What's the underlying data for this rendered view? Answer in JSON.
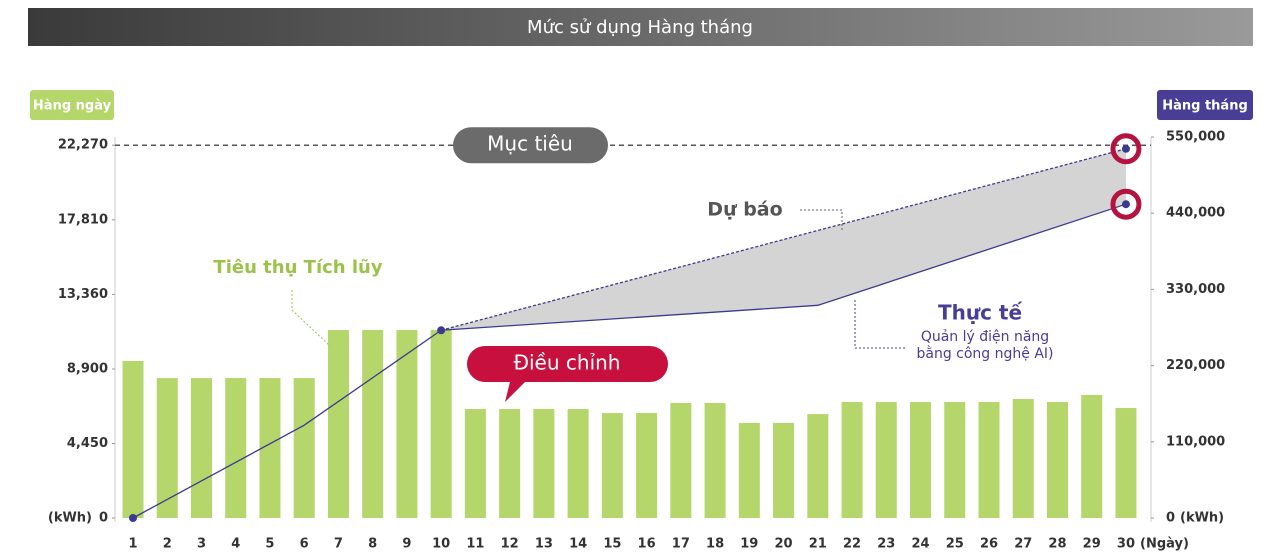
{
  "chart_data": {
    "type": "bar",
    "title": "Mức sử dụng Hàng tháng",
    "y_label": "Hàng ngày",
    "y2_label": "Hàng tháng",
    "unit": "(kWh)",
    "x_unit": "(Ngày)",
    "categories": [
      "1",
      "2",
      "3",
      "4",
      "5",
      "6",
      "7",
      "8",
      "9",
      "10",
      "11",
      "12",
      "13",
      "14",
      "15",
      "16",
      "17",
      "18",
      "19",
      "20",
      "21",
      "22",
      "23",
      "24",
      "25",
      "26",
      "27",
      "28",
      "29",
      "30"
    ],
    "color": "#b5d66b",
    "values": [
      9380,
      8360,
      8360,
      8360,
      8360,
      8360,
      11230,
      11230,
      11230,
      11230,
      6510,
      6510,
      6510,
      6510,
      6270,
      6270,
      6870,
      6870,
      5680,
      5680,
      6210,
      6930,
      6930,
      6930,
      6930,
      6930,
      7110,
      6930,
      7350,
      6570
    ],
    "ylim": [
      0,
      22760
    ],
    "yticks": [
      0,
      {
        "value": 4450,
        "label": "4,450"
      },
      {
        "value": 8900,
        "label": "8,900"
      },
      {
        "value": 13360,
        "label": "13,360"
      },
      {
        "value": 17810,
        "label": "17,810"
      },
      {
        "value": 22270,
        "label": "22,270"
      }
    ],
    "y2lim": [
      0,
      550000
    ],
    "y2ticks": [
      0,
      {
        "value": 110000,
        "label": "110,000"
      },
      {
        "value": 220000,
        "label": "220,000"
      },
      {
        "value": 330000,
        "label": "330,000"
      },
      {
        "value": 440000,
        "label": "440,000"
      },
      {
        "value": 550000,
        "label": "550,000"
      }
    ],
    "target_label": "Mục tiêu",
    "lines": [
      {
        "name": "Tiêu thụ Tích lũy",
        "color": "#3c3a8f",
        "axis": "y2",
        "x": [
          1,
          6,
          10,
          21,
          30
        ],
        "values": [
          0,
          134000,
          271000,
          307000,
          453000
        ]
      },
      {
        "name": "Dự báo",
        "color": "#3c3a8f",
        "axis": "y2",
        "dashed": true,
        "x": [
          10,
          30
        ],
        "values": [
          271000,
          533000
        ]
      }
    ],
    "actual_label": "Thực tế",
    "actual_note": [
      "Quản lý điện năng",
      "bằng công nghệ AI)"
    ],
    "adjust_label": "Điều chỉnh"
  }
}
